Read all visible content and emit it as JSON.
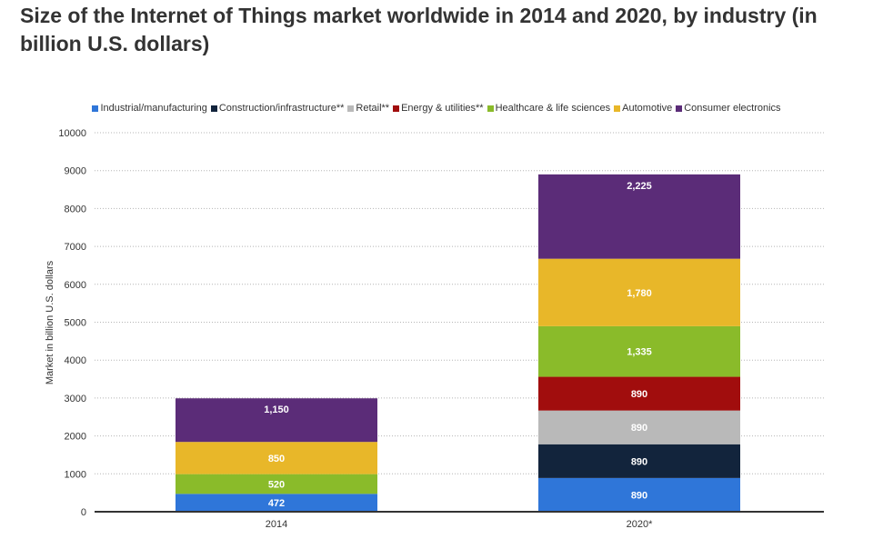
{
  "chart_data": {
    "type": "bar",
    "stacked": true,
    "title": "Size of the Internet of Things market worldwide in 2014 and 2020, by industry (in billion U.S. dollars)",
    "xlabel": "",
    "ylabel": "Market in billion U.S. dollars",
    "ylim": [
      0,
      10000
    ],
    "yticks": [
      "0",
      "1000",
      "2000",
      "3000",
      "4000",
      "5000",
      "6000",
      "7000",
      "8000",
      "9000",
      "10000"
    ],
    "grid": true,
    "legend_position": "top",
    "categories": [
      "2014",
      "2020*"
    ],
    "series": [
      {
        "name": "Industrial/manufacturing",
        "color": "#2f76d9",
        "values": [
          472,
          890
        ],
        "labels": [
          "472",
          "890"
        ]
      },
      {
        "name": "Construction/infrastructure**",
        "color": "#12243c",
        "values": [
          0,
          890
        ],
        "labels": [
          "",
          "890"
        ]
      },
      {
        "name": "Retail**",
        "color": "#b9b9b9",
        "values": [
          0,
          890
        ],
        "labels": [
          "",
          "890"
        ]
      },
      {
        "name": "Energy & utilities**",
        "color": "#a10d0d",
        "values": [
          0,
          890
        ],
        "labels": [
          "",
          "890"
        ]
      },
      {
        "name": "Healthcare & life sciences",
        "color": "#8abb2a",
        "values": [
          520,
          1335
        ],
        "labels": [
          "520",
          "1,335"
        ]
      },
      {
        "name": "Automotive",
        "color": "#e8b729",
        "values": [
          850,
          1780
        ],
        "labels": [
          "850",
          "1,780"
        ]
      },
      {
        "name": "Consumer electronics",
        "color": "#5b2c78",
        "values": [
          1150,
          2225
        ],
        "labels": [
          "1,150",
          "2,225"
        ]
      }
    ]
  }
}
